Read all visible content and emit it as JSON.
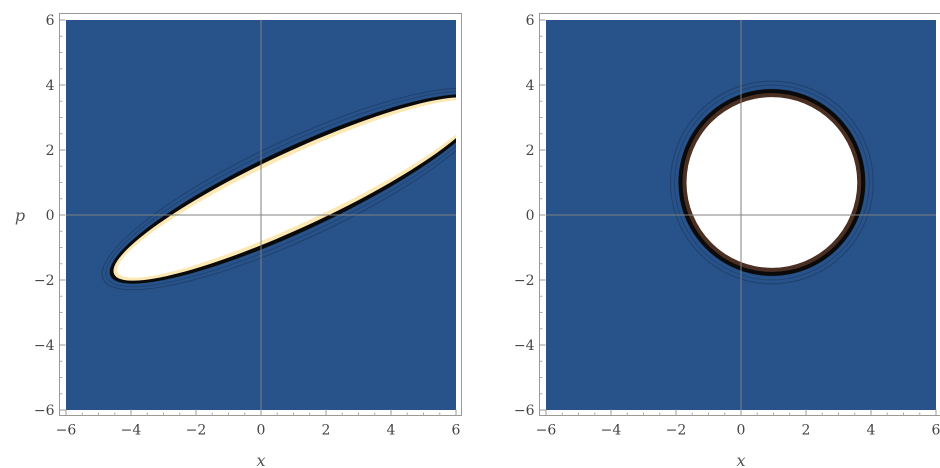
{
  "chart_data": [
    {
      "type": "contour",
      "title": "",
      "xlabel": "x",
      "ylabel": "p",
      "xlim": [
        -6,
        6
      ],
      "ylim": [
        -6,
        6
      ],
      "xticks": [
        -6,
        -4,
        -2,
        0,
        2,
        4,
        6
      ],
      "yticks": [
        -6,
        -4,
        -2,
        0,
        2,
        4,
        6
      ],
      "xtick_labels": [
        "−6",
        "−4",
        "−2",
        "0",
        "2",
        "4",
        "6"
      ],
      "ytick_labels": [
        "−6",
        "−4",
        "−2",
        "0",
        "2",
        "4",
        "6"
      ],
      "grid": false,
      "axes_through_origin": true,
      "background_color": "#27528a",
      "region": {
        "shape": "tilted-ellipse",
        "center": [
          1.1,
          0.8
        ],
        "semi_major": 6.2,
        "semi_minor": 1.15,
        "angle_deg": 25,
        "fill_color": "#ffffff",
        "edge_color": "#fbe8b3",
        "boundary_color": "#0a0a0a"
      }
    },
    {
      "type": "contour",
      "title": "",
      "xlabel": "x",
      "ylabel": "",
      "xlim": [
        -6,
        6
      ],
      "ylim": [
        -6,
        6
      ],
      "xticks": [
        -6,
        -4,
        -2,
        0,
        2,
        4,
        6
      ],
      "yticks": [
        -6,
        -4,
        -2,
        0,
        2,
        4,
        6
      ],
      "xtick_labels": [
        "−6",
        "−4",
        "−2",
        "0",
        "2",
        "4",
        "6"
      ],
      "ytick_labels": [
        "−6",
        "−4",
        "−2",
        "0",
        "2",
        "4",
        "6"
      ],
      "grid": false,
      "axes_through_origin": true,
      "background_color": "#27528a",
      "region": {
        "shape": "circle",
        "center": [
          0.95,
          1.0
        ],
        "radius": 2.75,
        "fill_color": "#ffffff",
        "edge_color": "#4a2f22",
        "boundary_color": "#0a0a0a"
      }
    }
  ]
}
